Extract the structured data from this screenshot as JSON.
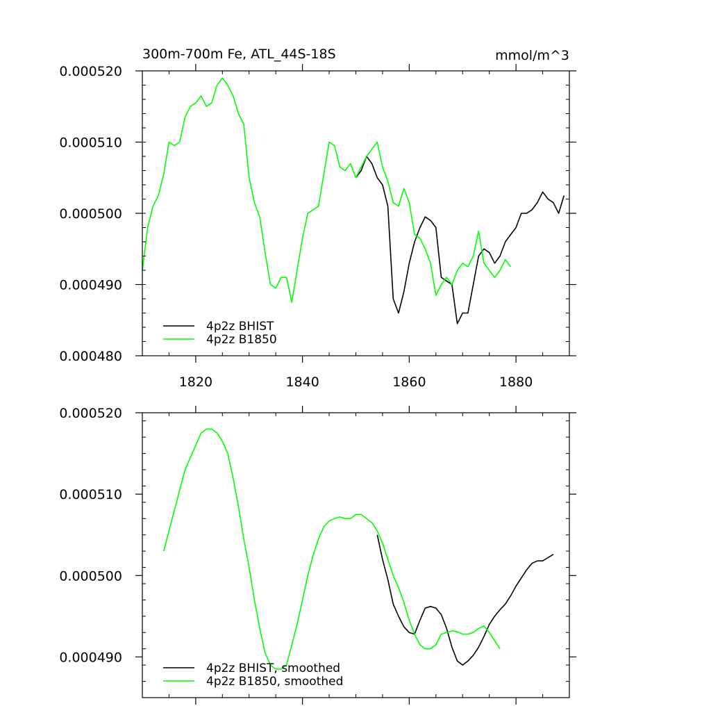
{
  "chart_data": [
    {
      "type": "line",
      "title": "300m-700m Fe, ATL_44S-18S",
      "units": "mmol/m^3",
      "xlim": [
        1810,
        1890
      ],
      "ylim": [
        0.00048,
        0.00052
      ],
      "xticks": [
        1820,
        1840,
        1860,
        1880
      ],
      "yticks": [
        0.00048,
        0.00049,
        0.0005,
        0.00051,
        0.00052
      ],
      "ytick_labels": [
        "0.000480",
        "0.000490",
        "0.000500",
        "0.000510",
        "0.000520"
      ],
      "xtick_labels": [
        "1820",
        "1840",
        "1860",
        "1880"
      ],
      "legend_position": "bottom-left",
      "series": [
        {
          "name": "4p2z BHIST",
          "color": "#000000",
          "x": [
            1850,
            1851,
            1852,
            1853,
            1854,
            1855,
            1856,
            1857,
            1858,
            1859,
            1860,
            1861,
            1862,
            1863,
            1864,
            1865,
            1866,
            1867,
            1868,
            1869,
            1870,
            1871,
            1872,
            1873,
            1874,
            1875,
            1876,
            1877,
            1878,
            1879,
            1880,
            1881,
            1882,
            1883,
            1884,
            1885,
            1886,
            1887,
            1888,
            1889
          ],
          "values": [
            0.000505,
            0.000506,
            0.000508,
            0.000507,
            0.000505,
            0.000504,
            0.000501,
            0.000488,
            0.000486,
            0.000489,
            0.000493,
            0.000496,
            0.000498,
            0.0004995,
            0.000499,
            0.000498,
            0.000491,
            0.0004905,
            0.00049,
            0.0004845,
            0.000486,
            0.000486,
            0.00049,
            0.000494,
            0.000495,
            0.0004945,
            0.000493,
            0.000494,
            0.000496,
            0.000497,
            0.000498,
            0.0005,
            0.0005,
            0.0005005,
            0.0005015,
            0.000503,
            0.000502,
            0.0005015,
            0.0005,
            0.0005025
          ]
        },
        {
          "name": "4p2z B1850",
          "color": "#00ff00",
          "x": [
            1810,
            1811,
            1812,
            1813,
            1814,
            1815,
            1816,
            1817,
            1818,
            1819,
            1820,
            1821,
            1822,
            1823,
            1824,
            1825,
            1826,
            1827,
            1828,
            1829,
            1830,
            1831,
            1832,
            1833,
            1834,
            1835,
            1836,
            1837,
            1838,
            1839,
            1840,
            1841,
            1842,
            1843,
            1844,
            1845,
            1846,
            1847,
            1848,
            1849,
            1850,
            1851,
            1852,
            1853,
            1854,
            1855,
            1856,
            1857,
            1858,
            1859,
            1860,
            1861,
            1862,
            1863,
            1864,
            1865,
            1866,
            1867,
            1868,
            1869,
            1870,
            1871,
            1872,
            1873,
            1874,
            1875,
            1876,
            1877,
            1878,
            1879
          ],
          "values": [
            0.000492,
            0.000498,
            0.000501,
            0.0005025,
            0.0005055,
            0.00051,
            0.0005095,
            0.00051,
            0.0005135,
            0.000515,
            0.0005155,
            0.0005165,
            0.000515,
            0.0005155,
            0.000518,
            0.000519,
            0.000518,
            0.0005165,
            0.000514,
            0.0005125,
            0.000505,
            0.0005015,
            0.0004995,
            0.0004945,
            0.00049,
            0.0004895,
            0.000491,
            0.000491,
            0.0004875,
            0.000492,
            0.0004965,
            0.0005,
            0.0005005,
            0.000501,
            0.0005055,
            0.00051,
            0.0005095,
            0.0005065,
            0.000506,
            0.000507,
            0.000505,
            0.0005065,
            0.000508,
            0.000509,
            0.00051,
            0.0005065,
            0.0005045,
            0.0005015,
            0.000501,
            0.0005035,
            0.0005015,
            0.000497,
            0.0004965,
            0.000495,
            0.000493,
            0.0004885,
            0.00049,
            0.000491,
            0.00049,
            0.000492,
            0.000493,
            0.0004925,
            0.000494,
            0.0004975,
            0.000493,
            0.000492,
            0.000491,
            0.000492,
            0.0004935,
            0.0004925
          ]
        }
      ]
    },
    {
      "type": "line",
      "xlim": [
        1810,
        1890
      ],
      "ylim": [
        0.000485,
        0.00052
      ],
      "xticks": [
        1820,
        1840,
        1860,
        1880
      ],
      "yticks": [
        0.00049,
        0.0005,
        0.00051,
        0.00052
      ],
      "ytick_labels": [
        "0.000490",
        "0.000500",
        "0.000510",
        "0.000520"
      ],
      "legend_position": "bottom-left",
      "series": [
        {
          "name": "4p2z BHIST, smoothed",
          "color": "#000000",
          "x": [
            1854,
            1855,
            1856,
            1857,
            1858,
            1859,
            1860,
            1861,
            1862,
            1863,
            1864,
            1865,
            1866,
            1867,
            1868,
            1869,
            1870,
            1871,
            1872,
            1873,
            1874,
            1875,
            1876,
            1877,
            1878,
            1879,
            1880,
            1881,
            1882,
            1883,
            1884,
            1885,
            1886,
            1887
          ],
          "values": [
            0.000505,
            0.000502,
            0.0004995,
            0.0004965,
            0.000495,
            0.0004937,
            0.000493,
            0.0004928,
            0.0004945,
            0.000496,
            0.0004962,
            0.000496,
            0.0004952,
            0.0004935,
            0.0004912,
            0.0004895,
            0.000489,
            0.0004895,
            0.0004902,
            0.0004912,
            0.0004925,
            0.000494,
            0.000495,
            0.0004958,
            0.0004965,
            0.0004975,
            0.0004987,
            0.0004997,
            0.0005007,
            0.0005015,
            0.0005018,
            0.0005018,
            0.0005022,
            0.0005026
          ]
        },
        {
          "name": "4p2z B1850, smoothed",
          "color": "#00ff00",
          "x": [
            1814,
            1815,
            1816,
            1817,
            1818,
            1819,
            1820,
            1821,
            1822,
            1823,
            1824,
            1825,
            1826,
            1827,
            1828,
            1829,
            1830,
            1831,
            1832,
            1833,
            1834,
            1835,
            1836,
            1837,
            1838,
            1839,
            1840,
            1841,
            1842,
            1843,
            1844,
            1845,
            1846,
            1847,
            1848,
            1849,
            1850,
            1851,
            1852,
            1853,
            1854,
            1855,
            1856,
            1857,
            1858,
            1859,
            1860,
            1861,
            1862,
            1863,
            1864,
            1865,
            1866,
            1867,
            1868,
            1869,
            1870,
            1871,
            1872,
            1873,
            1874,
            1875,
            1876,
            1877
          ],
          "values": [
            0.000503,
            0.0005055,
            0.000508,
            0.0005105,
            0.000513,
            0.0005145,
            0.000516,
            0.0005175,
            0.000518,
            0.000518,
            0.0005175,
            0.0005165,
            0.000515,
            0.000512,
            0.0005085,
            0.0005045,
            0.000501,
            0.000497,
            0.0004935,
            0.0004905,
            0.000489,
            0.0004885,
            0.0004885,
            0.000489,
            0.0004915,
            0.000494,
            0.000497,
            0.0005,
            0.0005025,
            0.0005045,
            0.000506,
            0.0005067,
            0.000507,
            0.0005072,
            0.000507,
            0.000507,
            0.0005075,
            0.0005075,
            0.000507,
            0.0005065,
            0.0005055,
            0.000504,
            0.000502,
            0.0005,
            0.0004985,
            0.0004967,
            0.0004945,
            0.0004928,
            0.0004915,
            0.000491,
            0.000491,
            0.0004915,
            0.0004928,
            0.000493,
            0.0004932,
            0.0004931,
            0.0004928,
            0.0004928,
            0.000493,
            0.0004935,
            0.0004938,
            0.000493,
            0.000492,
            0.000491
          ]
        }
      ]
    }
  ]
}
